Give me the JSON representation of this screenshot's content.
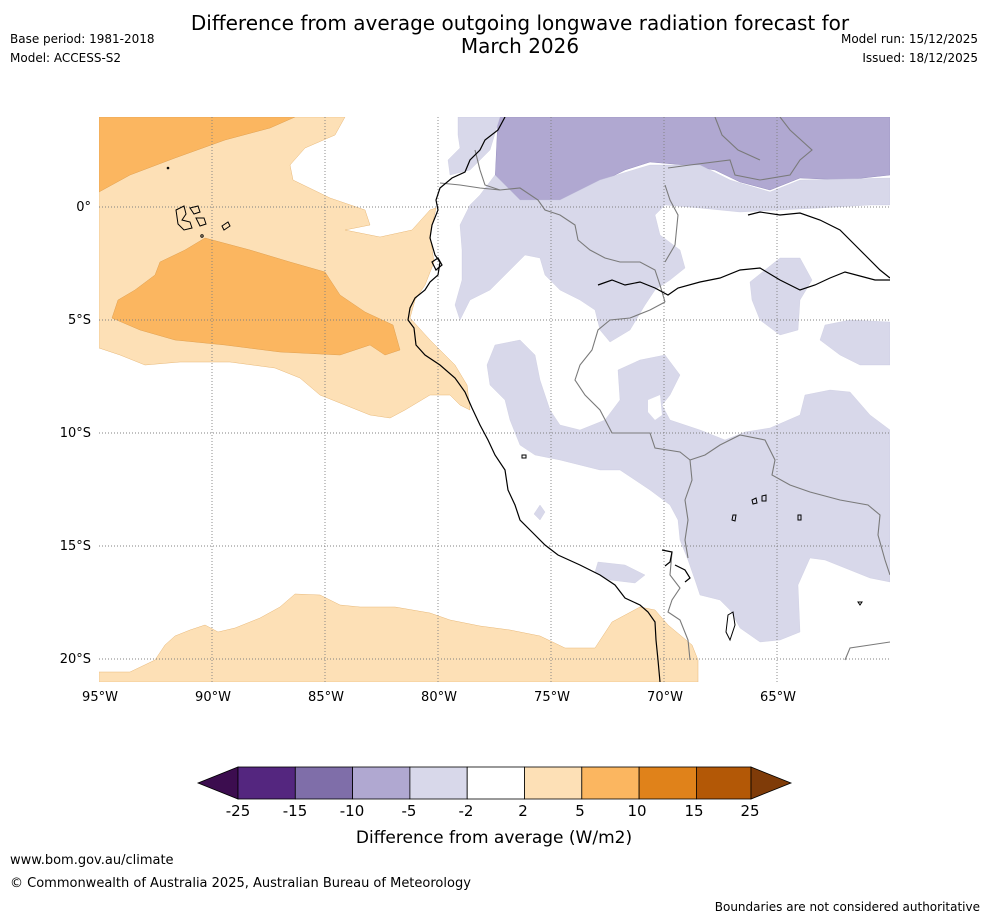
{
  "header": {
    "title_line1": "Difference from average outgoing longwave radiation forecast for",
    "title_line2": "March 2026",
    "base_period": "Base period: 1981-2018",
    "model": "Model: ACCESS-S2",
    "model_run": "Model run: 15/12/2025",
    "issued": "Issued: 18/12/2025"
  },
  "map": {
    "lon_labels": [
      "95°W",
      "90°W",
      "85°W",
      "80°W",
      "75°W",
      "70°W",
      "65°W"
    ],
    "lat_labels": [
      "0°",
      "5°S",
      "10°S",
      "15°S",
      "20°S"
    ]
  },
  "colorbar": {
    "ticks": [
      "-25",
      "-15",
      "-10",
      "-5",
      "-2",
      "2",
      "5",
      "10",
      "15",
      "25"
    ],
    "colors": [
      "#3c0d4f",
      "#54267f",
      "#7f6ea9",
      "#b0a8d1",
      "#d8d8ea",
      "#ffffff",
      "#fde0b6",
      "#fbb660",
      "#e0821a",
      "#b35806",
      "#7f3b08"
    ],
    "label": "Difference from average (W/m2)"
  },
  "footer": {
    "url": "www.bom.gov.au/climate",
    "copyright": "© Commonwealth of Australia 2025, Australian Bureau of Meteorology",
    "disclaimer": "Boundaries are not considered authoritative"
  }
}
